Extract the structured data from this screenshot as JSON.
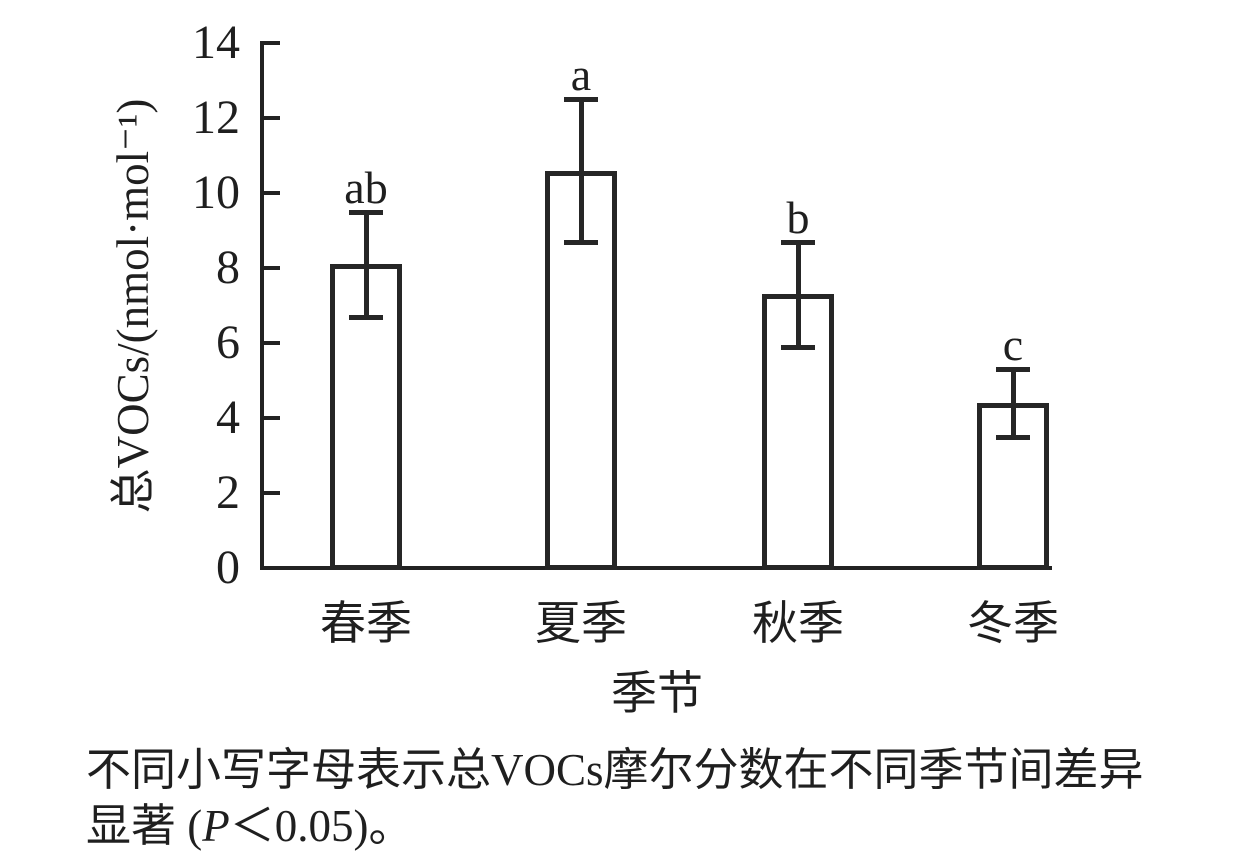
{
  "chart_data": {
    "type": "bar",
    "title": "",
    "categories": [
      "春季",
      "夏季",
      "秋季",
      "冬季"
    ],
    "category_keys": [
      "spring",
      "summer",
      "autumn",
      "winter"
    ],
    "values": [
      8.1,
      10.6,
      7.3,
      4.4
    ],
    "errors": [
      1.4,
      1.9,
      1.4,
      0.9
    ],
    "sig_letters": [
      "ab",
      "a",
      "b",
      "c"
    ],
    "xlabel": "季节",
    "ylabel": "总VOCs/(nmol·mol⁻¹)",
    "ylim": [
      0,
      14
    ],
    "yticks": [
      0,
      2,
      4,
      6,
      8,
      10,
      12,
      14
    ],
    "grid": false,
    "legend": null,
    "bar_fill": "#ffffff",
    "bar_border": "#262626",
    "ink_color": "#1f1f1f"
  },
  "caption": {
    "line1": "不同小写字母表示总VOCs摩尔分数在不同季节间差异",
    "line2_prefix": "显著 (",
    "line2_italic": "P",
    "line2_suffix": "＜0.05)。"
  }
}
